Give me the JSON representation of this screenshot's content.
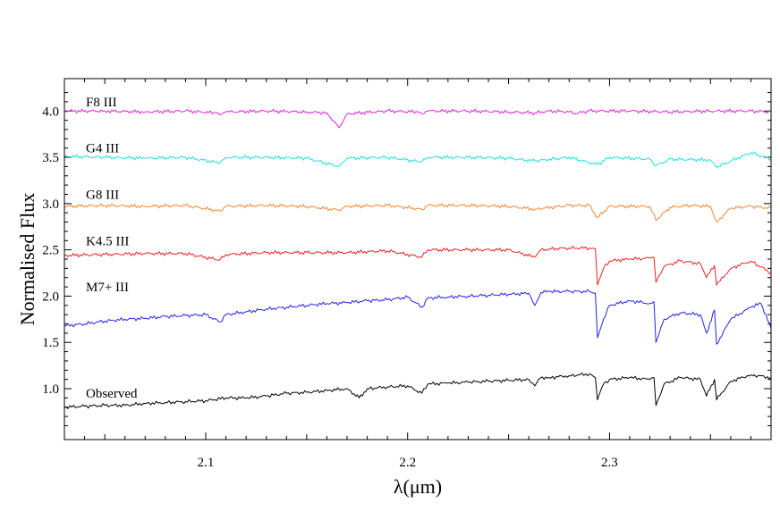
{
  "chart_data": {
    "type": "line",
    "xlabel": "λ(μm)",
    "ylabel": "Normalised Flux",
    "xlim": [
      2.03,
      2.38
    ],
    "ylim": [
      0.45,
      4.35
    ],
    "x_ticks": [
      2.1,
      2.2,
      2.3
    ],
    "x_tick_labels": [
      "2.1",
      "2.2",
      "2.3"
    ],
    "y_ticks": [
      1.0,
      1.5,
      2.0,
      2.5,
      3.0,
      3.5,
      4.0
    ],
    "y_tick_labels": [
      "1.0",
      "1.5",
      "2.0",
      "2.5",
      "3.0",
      "3.5",
      "4.0"
    ],
    "grid": false,
    "legend": "none",
    "series": [
      {
        "name": "F8 III",
        "color": "#dd22dd",
        "label_y": 4.1,
        "x": [
          2.03,
          2.05,
          2.07,
          2.09,
          2.105,
          2.107,
          2.11,
          2.13,
          2.15,
          2.16,
          2.166,
          2.17,
          2.19,
          2.205,
          2.207,
          2.21,
          2.23,
          2.25,
          2.263,
          2.27,
          2.28,
          2.282,
          2.29,
          2.31,
          2.33,
          2.35,
          2.37,
          2.38
        ],
        "values": [
          4.0,
          4.0,
          3.99,
          4.0,
          3.98,
          3.96,
          3.99,
          4.0,
          3.99,
          3.98,
          3.82,
          3.97,
          4.0,
          3.99,
          3.97,
          4.0,
          4.0,
          3.99,
          3.98,
          4.0,
          3.99,
          3.97,
          4.0,
          4.0,
          3.99,
          4.0,
          4.0,
          3.99
        ]
      },
      {
        "name": "G4 III",
        "color": "#22dddd",
        "label_y": 3.6,
        "x": [
          2.03,
          2.05,
          2.07,
          2.09,
          2.107,
          2.11,
          2.13,
          2.15,
          2.166,
          2.17,
          2.19,
          2.207,
          2.21,
          2.23,
          2.25,
          2.263,
          2.28,
          2.294,
          2.3,
          2.32,
          2.323,
          2.33,
          2.35,
          2.353,
          2.36,
          2.37,
          2.38
        ],
        "values": [
          3.51,
          3.5,
          3.49,
          3.5,
          3.44,
          3.5,
          3.5,
          3.49,
          3.4,
          3.49,
          3.5,
          3.45,
          3.5,
          3.5,
          3.49,
          3.46,
          3.5,
          3.42,
          3.5,
          3.48,
          3.41,
          3.48,
          3.47,
          3.39,
          3.46,
          3.55,
          3.48
        ]
      },
      {
        "name": "G8 III",
        "color": "#ee8833",
        "label_y": 3.1,
        "x": [
          2.03,
          2.05,
          2.07,
          2.09,
          2.107,
          2.11,
          2.13,
          2.15,
          2.166,
          2.17,
          2.19,
          2.207,
          2.21,
          2.23,
          2.25,
          2.263,
          2.28,
          2.29,
          2.294,
          2.3,
          2.32,
          2.323,
          2.33,
          2.34,
          2.35,
          2.353,
          2.36,
          2.37,
          2.38
        ],
        "values": [
          2.97,
          2.98,
          2.97,
          2.98,
          2.92,
          2.97,
          2.98,
          2.97,
          2.93,
          2.97,
          2.98,
          2.94,
          2.98,
          2.98,
          2.97,
          2.94,
          2.98,
          2.98,
          2.85,
          2.97,
          2.97,
          2.82,
          2.96,
          2.98,
          2.97,
          2.8,
          2.95,
          2.97,
          2.95
        ]
      },
      {
        "name": "K4.5 III",
        "color": "#ee2222",
        "label_y": 2.6,
        "x": [
          2.03,
          2.05,
          2.07,
          2.09,
          2.107,
          2.11,
          2.13,
          2.15,
          2.17,
          2.19,
          2.207,
          2.21,
          2.23,
          2.25,
          2.263,
          2.266,
          2.27,
          2.28,
          2.29,
          2.293,
          2.294,
          2.297,
          2.3,
          2.31,
          2.32,
          2.322,
          2.323,
          2.327,
          2.335,
          2.345,
          2.348,
          2.352,
          2.353,
          2.36,
          2.37,
          2.38
        ],
        "values": [
          2.44,
          2.45,
          2.46,
          2.46,
          2.39,
          2.45,
          2.47,
          2.47,
          2.47,
          2.49,
          2.42,
          2.5,
          2.5,
          2.5,
          2.42,
          2.5,
          2.51,
          2.52,
          2.52,
          2.51,
          2.12,
          2.3,
          2.38,
          2.4,
          2.41,
          2.42,
          2.15,
          2.32,
          2.38,
          2.35,
          2.2,
          2.33,
          2.12,
          2.3,
          2.38,
          2.25
        ]
      },
      {
        "name": "M7+ III",
        "color": "#2222ee",
        "label_y": 2.1,
        "x": [
          2.03,
          2.04,
          2.05,
          2.06,
          2.07,
          2.08,
          2.09,
          2.1,
          2.107,
          2.11,
          2.12,
          2.13,
          2.14,
          2.15,
          2.16,
          2.17,
          2.18,
          2.19,
          2.2,
          2.207,
          2.21,
          2.22,
          2.23,
          2.24,
          2.25,
          2.26,
          2.263,
          2.266,
          2.27,
          2.28,
          2.29,
          2.293,
          2.294,
          2.297,
          2.3,
          2.31,
          2.32,
          2.322,
          2.323,
          2.327,
          2.335,
          2.345,
          2.348,
          2.352,
          2.353,
          2.36,
          2.37,
          2.375,
          2.38
        ],
        "values": [
          1.68,
          1.7,
          1.73,
          1.75,
          1.76,
          1.78,
          1.79,
          1.8,
          1.72,
          1.8,
          1.83,
          1.86,
          1.88,
          1.9,
          1.92,
          1.93,
          1.95,
          1.96,
          1.99,
          1.88,
          1.98,
          1.99,
          2.0,
          2.01,
          2.02,
          2.03,
          1.9,
          2.04,
          2.05,
          2.05,
          2.05,
          2.03,
          1.55,
          1.75,
          1.9,
          1.95,
          1.92,
          1.94,
          1.5,
          1.75,
          1.82,
          1.8,
          1.6,
          1.85,
          1.48,
          1.75,
          1.88,
          1.92,
          1.65
        ]
      },
      {
        "name": "Observed",
        "color": "#000000",
        "label_y": 0.95,
        "x": [
          2.03,
          2.04,
          2.05,
          2.06,
          2.07,
          2.08,
          2.09,
          2.1,
          2.11,
          2.12,
          2.13,
          2.14,
          2.15,
          2.16,
          2.17,
          2.176,
          2.18,
          2.19,
          2.2,
          2.207,
          2.21,
          2.22,
          2.23,
          2.24,
          2.25,
          2.26,
          2.263,
          2.266,
          2.27,
          2.28,
          2.29,
          2.293,
          2.294,
          2.297,
          2.3,
          2.31,
          2.32,
          2.322,
          2.323,
          2.327,
          2.335,
          2.345,
          2.348,
          2.352,
          2.353,
          2.36,
          2.37,
          2.38
        ],
        "values": [
          0.8,
          0.81,
          0.82,
          0.82,
          0.84,
          0.85,
          0.86,
          0.87,
          0.9,
          0.9,
          0.92,
          0.95,
          0.96,
          0.98,
          1.0,
          0.9,
          1.0,
          1.02,
          1.03,
          0.95,
          1.05,
          1.06,
          1.07,
          1.08,
          1.09,
          1.1,
          1.03,
          1.12,
          1.12,
          1.14,
          1.16,
          1.12,
          0.88,
          1.05,
          1.1,
          1.12,
          1.1,
          1.12,
          0.82,
          1.05,
          1.12,
          1.1,
          0.92,
          1.1,
          0.88,
          1.08,
          1.15,
          1.12
        ]
      }
    ]
  }
}
